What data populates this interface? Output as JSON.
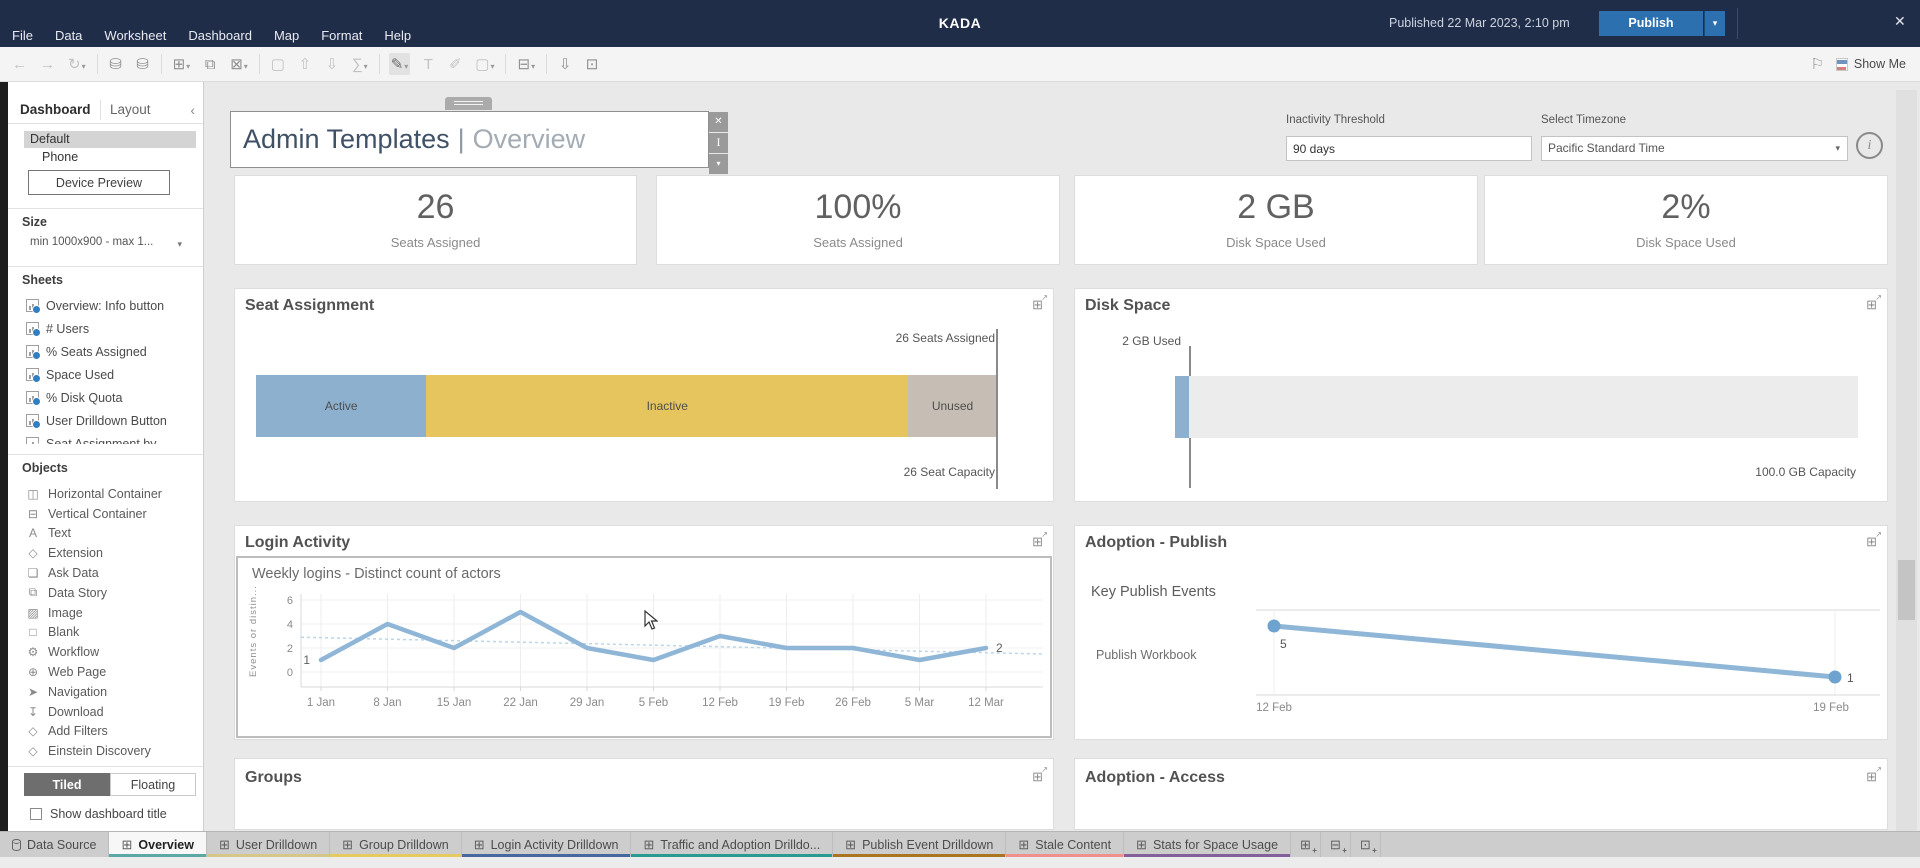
{
  "icons": {
    "caret_down": "▾",
    "close": "✕",
    "collapse_left": "‹",
    "info": "i",
    "grid": "⊞",
    "external": "↗",
    "pin": "I",
    "flag": "⚐"
  },
  "titlebar": {
    "menus": [
      "File",
      "Data",
      "Worksheet",
      "Dashboard",
      "Map",
      "Format",
      "Help"
    ],
    "app_title": "KADA",
    "published": "Published 22 Mar 2023, 2:10 pm",
    "publish_label": "Publish"
  },
  "toolbar": {
    "show_me_label": "Show Me",
    "items": [
      {
        "name": "undo-icon",
        "glyph": "←",
        "disabled": true
      },
      {
        "name": "redo-icon",
        "glyph": "→",
        "disabled": true
      },
      {
        "name": "refresh-data-icon",
        "glyph": "↻",
        "dropdown": true,
        "disabled": true
      },
      {
        "sep": true
      },
      {
        "name": "new-datasource-icon",
        "glyph": "⛁"
      },
      {
        "name": "pause-updates-icon",
        "glyph": "⛁"
      },
      {
        "sep": true
      },
      {
        "name": "new-worksheet-icon",
        "glyph": "⊞",
        "dropdown": true
      },
      {
        "name": "duplicate-sheet-icon",
        "glyph": "⧉"
      },
      {
        "name": "clear-sheet-icon",
        "glyph": "⊠",
        "dropdown": true
      },
      {
        "sep": true
      },
      {
        "name": "group-members-icon",
        "glyph": "▢",
        "disabled": true
      },
      {
        "name": "sort-ascending-icon",
        "glyph": "⇧",
        "disabled": true
      },
      {
        "name": "sort-descending-icon",
        "glyph": "⇩",
        "disabled": true
      },
      {
        "name": "totals-icon",
        "glyph": "∑",
        "dropdown": true,
        "disabled": true
      },
      {
        "sep": true
      },
      {
        "name": "highlight-icon",
        "glyph": "✎",
        "dropdown": true,
        "active": true
      },
      {
        "name": "format-text-icon",
        "glyph": "T",
        "disabled": true
      },
      {
        "name": "annotate-icon",
        "glyph": "✐",
        "disabled": true
      },
      {
        "name": "borders-icon",
        "glyph": "▢",
        "dropdown": true,
        "disabled": true
      },
      {
        "sep": true
      },
      {
        "name": "show-hide-cards-icon",
        "glyph": "⊟",
        "dropdown": true
      },
      {
        "sep": true
      },
      {
        "name": "download-device-icon",
        "glyph": "⇩"
      },
      {
        "name": "device-layout-icon",
        "glyph": "⊡"
      }
    ]
  },
  "sidebar": {
    "tabs": [
      {
        "label": "Dashboard",
        "active": true
      },
      {
        "label": "Layout",
        "active": false
      }
    ],
    "device_modes": [
      {
        "label": "Default",
        "selected": true
      },
      {
        "label": "Phone",
        "selected": false
      }
    ],
    "device_preview_label": "Device Preview",
    "size_label": "Size",
    "size_value": "min 1000x900 - max 1...",
    "sheets_label": "Sheets",
    "sheets": [
      "Overview: Info button",
      "# Users",
      "% Seats Assigned",
      "Space Used",
      "% Disk Quota",
      "User Drilldown Button",
      "Seat Assignment by"
    ],
    "objects_label": "Objects",
    "objects": [
      {
        "label": "Horizontal Container",
        "icon_name": "horizontal-container-icon",
        "glyph": "◫"
      },
      {
        "label": "Vertical Container",
        "icon_name": "vertical-container-icon",
        "glyph": "⊟"
      },
      {
        "label": "Text",
        "icon_name": "text-icon",
        "glyph": "A"
      },
      {
        "label": "Extension",
        "icon_name": "extension-icon",
        "glyph": "◇"
      },
      {
        "label": "Ask Data",
        "icon_name": "ask-data-icon",
        "glyph": "❏"
      },
      {
        "label": "Data Story",
        "icon_name": "data-story-icon",
        "glyph": "⧉"
      },
      {
        "label": "Image",
        "icon_name": "image-icon",
        "glyph": "▨"
      },
      {
        "label": "Blank",
        "icon_name": "blank-icon",
        "glyph": "□"
      },
      {
        "label": "Workflow",
        "icon_name": "workflow-icon",
        "glyph": "⚙"
      },
      {
        "label": "Web Page",
        "icon_name": "web-page-icon",
        "glyph": "⊕"
      },
      {
        "label": "Navigation",
        "icon_name": "navigation-icon",
        "glyph": "➤"
      },
      {
        "label": "Download",
        "icon_name": "download-icon",
        "glyph": "↧"
      },
      {
        "label": "Add Filters",
        "icon_name": "add-filters-icon",
        "glyph": "◇"
      },
      {
        "label": "Einstein Discovery",
        "icon_name": "einstein-discovery-icon",
        "glyph": "◇"
      }
    ],
    "tiled_label": "Tiled",
    "floating_label": "Floating",
    "show_title_label": "Show dashboard title"
  },
  "dashboard": {
    "title_primary": "Admin Templates",
    "title_separator": "|",
    "title_secondary": "Overview",
    "filters": {
      "inactivity_label": "Inactivity Threshold",
      "inactivity_value": "90 days",
      "timezone_label": "Select Timezone",
      "timezone_value": "Pacific Standard Time"
    },
    "kpis": [
      {
        "value": "26",
        "label": "Seats Assigned"
      },
      {
        "value": "100%",
        "label": "Seats Assigned"
      },
      {
        "value": "2 GB",
        "label": "Disk Space Used"
      },
      {
        "value": "2%",
        "label": "Disk Space Used"
      }
    ],
    "panels": {
      "seat_assignment": {
        "title": "Seat Assignment"
      },
      "disk_space": {
        "title": "Disk Space"
      },
      "login_activity": {
        "title": "Login Activity"
      },
      "adoption_publish": {
        "title": "Adoption - Publish"
      },
      "groups": {
        "title": "Groups"
      },
      "adoption_access": {
        "title": "Adoption - Access"
      }
    }
  },
  "chart_data": [
    {
      "id": "seat_assignment",
      "type": "bar",
      "subtype": "stacked-horizontal",
      "title": "Seat Assignment",
      "segments": [
        {
          "label": "Active",
          "pct": 23,
          "color": "#8cb0ce"
        },
        {
          "label": "Inactive",
          "pct": 65,
          "color": "#e6c55e"
        },
        {
          "label": "Unused",
          "pct": 12,
          "color": "#c6beb4"
        }
      ],
      "reference_top": "26 Seats Assigned",
      "reference_bottom": "26 Seat Capacity"
    },
    {
      "id": "disk_space",
      "type": "bar",
      "subtype": "bullet",
      "title": "Disk Space",
      "used_gb": 2,
      "capacity_gb": 100,
      "used_pct": 2,
      "used_label": "2 GB Used",
      "capacity_label": "100.0 GB Capacity",
      "bar_color": "#8cb0ce",
      "track_color": "#ececec"
    },
    {
      "id": "login_activity",
      "type": "line",
      "title": "Weekly logins - Distinct count of actors",
      "ylabel": "Events or distin...",
      "categories": [
        "1 Jan",
        "8 Jan",
        "15 Jan",
        "22 Jan",
        "29 Jan",
        "5 Feb",
        "12 Feb",
        "19 Feb",
        "26 Feb",
        "5 Mar",
        "12 Mar"
      ],
      "values": [
        1,
        4,
        2,
        5,
        2,
        1,
        3,
        2,
        2,
        1,
        2
      ],
      "trend": [
        2.9,
        1.5
      ],
      "ylim": [
        0,
        6
      ],
      "yticks": [
        0,
        2,
        4,
        6
      ],
      "first_label": "1",
      "last_label": "2",
      "line_color": "#8fb6d6",
      "trend_color": "#bcd5e8",
      "grid": true
    },
    {
      "id": "adoption_publish",
      "type": "line",
      "title": "Adoption - Publish",
      "section": "Key Publish Events",
      "categories": [
        "12 Feb",
        "19 Feb"
      ],
      "series": [
        {
          "name": "Publish Workbook",
          "values": [
            5,
            1
          ]
        }
      ],
      "point_labels": [
        "5",
        "1"
      ],
      "ylim": [
        0,
        6
      ],
      "line_color": "#8fb6d6",
      "point_color": "#6fa3cf"
    }
  ],
  "tabbar": {
    "tabs": [
      {
        "label": "Data Source",
        "kind": "datasource",
        "active": false,
        "color": null
      },
      {
        "label": "Overview",
        "kind": "sheet",
        "active": true,
        "color": "#5ba8a5"
      },
      {
        "label": "User Drilldown",
        "kind": "sheet",
        "active": false,
        "color": "#d5c68c"
      },
      {
        "label": "Group Drilldown",
        "kind": "sheet",
        "active": false,
        "color": "#e5ca5f"
      },
      {
        "label": "Login Activity Drilldown",
        "kind": "sheet",
        "active": false,
        "color": "#47689c"
      },
      {
        "label": "Traffic and Adoption Drilldo...",
        "kind": "sheet",
        "active": false,
        "color": "#2a9b90"
      },
      {
        "label": "Publish Event Drilldown",
        "kind": "sheet",
        "active": false,
        "color": "#aa7420"
      },
      {
        "label": "Stale Content",
        "kind": "sheet",
        "active": false,
        "color": "#f0908d"
      },
      {
        "label": "Stats for Space Usage",
        "kind": "sheet",
        "active": false,
        "color": "#826099"
      }
    ],
    "new_buttons": [
      {
        "name": "new-worksheet-button",
        "glyph": "⊞"
      },
      {
        "name": "new-dashboard-button",
        "glyph": "⊟"
      },
      {
        "name": "new-story-button",
        "glyph": "⊡"
      }
    ]
  }
}
